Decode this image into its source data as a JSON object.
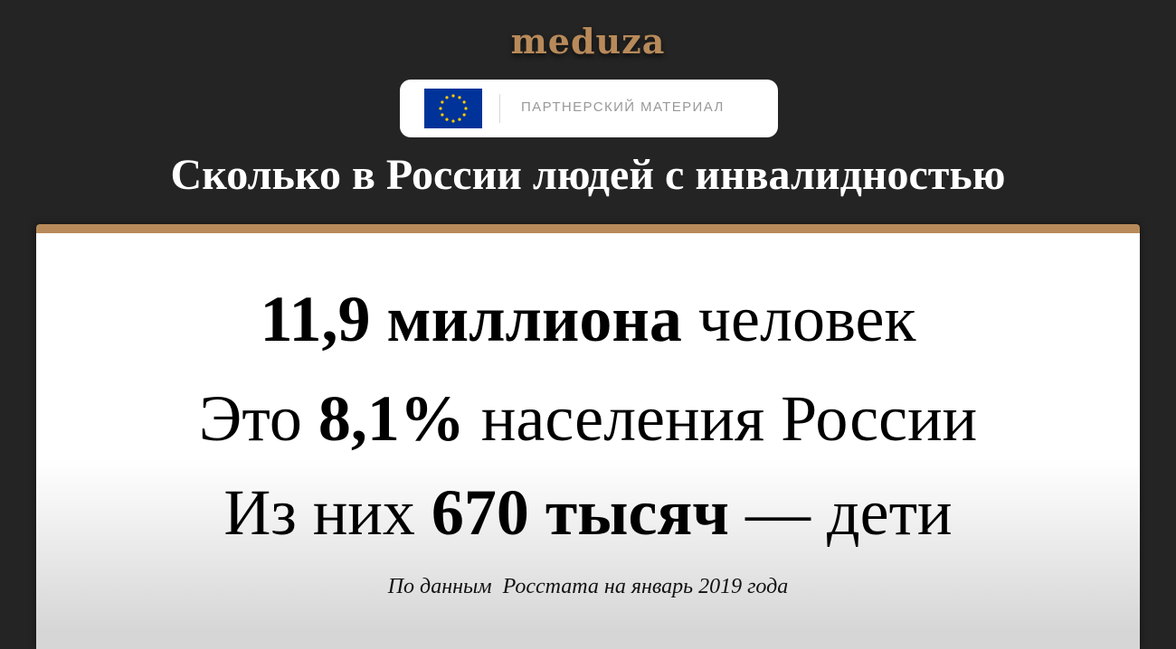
{
  "logo": "meduza",
  "badge": {
    "flag_icon": "eu-flag-icon",
    "label": "ПАРТНЕРСКИЙ МАТЕРИАЛ"
  },
  "title": "Сколько в России людей с инвалидностью",
  "colors": {
    "accent": "#b88a5a",
    "background": "#242424"
  },
  "card": {
    "line1": {
      "bold": "11,9 миллиона",
      "rest": " человек"
    },
    "line2": {
      "pre": "Это ",
      "bold": "8,1%",
      "rest": " населения России"
    },
    "line3": {
      "pre": "Из них ",
      "bold": "670 тысяч",
      "rest": " — дети"
    },
    "note": "По данным  Росстата на январь 2019 года"
  }
}
